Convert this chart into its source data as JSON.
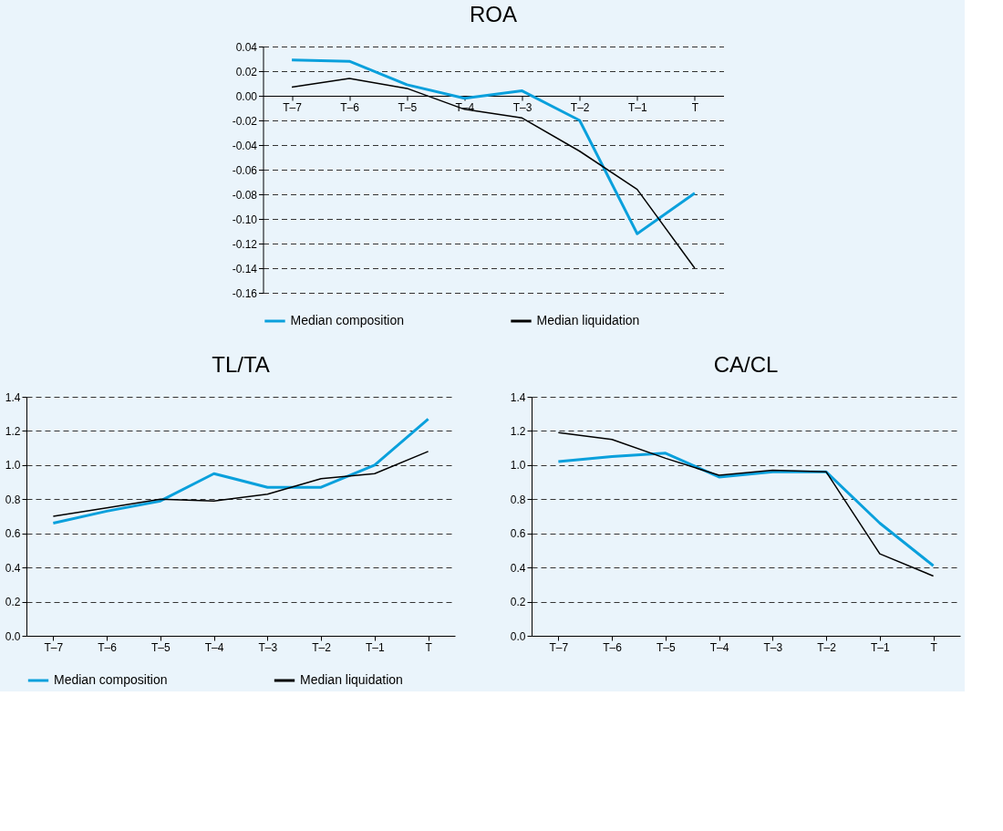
{
  "chart_data": [
    {
      "type": "line",
      "title": "ROA",
      "categories": [
        "T–7",
        "T–6",
        "T–5",
        "T–4",
        "T–3",
        "T–2",
        "T–1",
        "T"
      ],
      "series": [
        {
          "name": "Median composition",
          "color": "#0aa0dc",
          "values": [
            0.029,
            0.028,
            0.009,
            -0.002,
            0.004,
            -0.02,
            -0.112,
            -0.079
          ]
        },
        {
          "name": "Median liquidation",
          "color": "#000000",
          "values": [
            0.007,
            0.014,
            0.006,
            -0.011,
            -0.018,
            -0.045,
            -0.076,
            -0.14
          ]
        }
      ],
      "ylim": [
        -0.16,
        0.04
      ],
      "yticks": [
        {
          "value": -0.16,
          "label": "-0.16"
        },
        {
          "value": -0.14,
          "label": "-0.14"
        },
        {
          "value": -0.12,
          "label": "-0.12"
        },
        {
          "value": -0.1,
          "label": "-0.10"
        },
        {
          "value": -0.08,
          "label": "-0.08"
        },
        {
          "value": -0.06,
          "label": "-0.06"
        },
        {
          "value": -0.04,
          "label": "-0.04"
        },
        {
          "value": -0.02,
          "label": "-0.02"
        },
        {
          "value": 0,
          "label": "0.00"
        },
        {
          "value": 0.02,
          "label": "0.02"
        },
        {
          "value": 0.04,
          "label": "0.04"
        }
      ],
      "grid": "y",
      "legend": "bottom",
      "line_style": "solid"
    },
    {
      "type": "line",
      "title": "TL/TA",
      "categories": [
        "T–7",
        "T–6",
        "T–5",
        "T–4",
        "T–3",
        "T–2",
        "T–1",
        "T"
      ],
      "series": [
        {
          "name": "Median composition",
          "color": "#0aa0dc",
          "values": [
            0.66,
            0.73,
            0.79,
            0.95,
            0.87,
            0.87,
            1.0,
            1.27
          ]
        },
        {
          "name": "Median liquidation",
          "color": "#000000",
          "values": [
            0.7,
            0.75,
            0.8,
            0.79,
            0.83,
            0.92,
            0.95,
            1.08
          ]
        }
      ],
      "ylim": [
        0,
        1.4
      ],
      "yticks": [
        {
          "value": 0,
          "label": "0.0"
        },
        0.2,
        0.4,
        0.6,
        0.8,
        {
          "value": 1,
          "label": "1.0"
        },
        1.2,
        1.4
      ],
      "grid": "y",
      "legend": "bottom",
      "line_style": "solid"
    },
    {
      "type": "line",
      "title": "CA/CL",
      "categories": [
        "T–7",
        "T–6",
        "T–5",
        "T–4",
        "T–3",
        "T–2",
        "T–1",
        "T"
      ],
      "series": [
        {
          "name": "Median composition",
          "color": "#0aa0dc",
          "values": [
            1.02,
            1.05,
            1.07,
            0.93,
            0.96,
            0.96,
            0.66,
            0.41
          ]
        },
        {
          "name": "Median liquidation",
          "color": "#000000",
          "values": [
            1.19,
            1.15,
            1.04,
            0.94,
            0.97,
            0.96,
            0.48,
            0.35
          ]
        }
      ],
      "ylim": [
        0,
        1.4
      ],
      "yticks": [
        {
          "value": 0,
          "label": "0.0"
        },
        0.2,
        0.4,
        0.6,
        0.8,
        {
          "value": 1,
          "label": "1.0"
        },
        1.2,
        1.4
      ],
      "grid": "y",
      "legend": "bottom",
      "line_style": "solid"
    }
  ]
}
